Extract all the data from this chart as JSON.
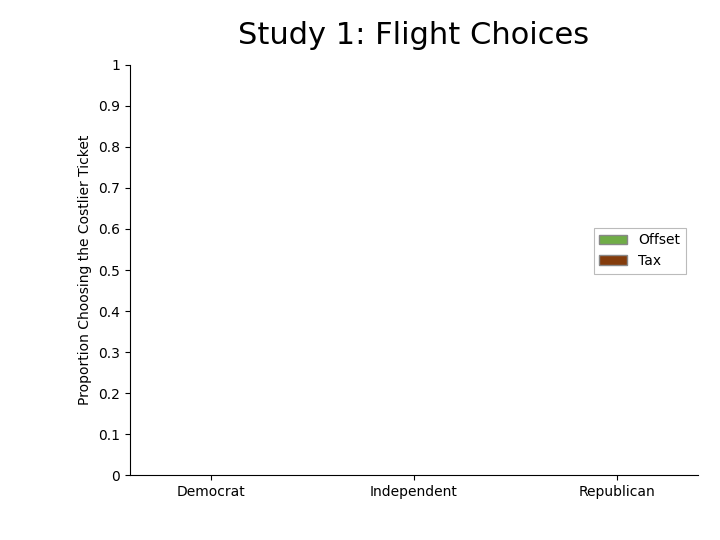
{
  "title": "Study 1: Flight Choices",
  "ylabel": "Proportion Choosing the Costlier Ticket",
  "categories": [
    "Democrat",
    "Independent",
    "Republican"
  ],
  "series": [
    {
      "label": "Offset",
      "color": "#70AD47",
      "values": [
        0,
        0,
        0
      ]
    },
    {
      "label": "Tax",
      "color": "#843C0C",
      "values": [
        0,
        0,
        0
      ]
    }
  ],
  "ylim": [
    0,
    1
  ],
  "yticks": [
    0,
    0.1,
    0.2,
    0.3,
    0.4,
    0.5,
    0.6,
    0.7,
    0.8,
    0.9,
    1
  ],
  "ytick_labels": [
    "0",
    "0.1",
    "0.2",
    "0.3",
    "0.4",
    "0.5",
    "0.6",
    "0.7",
    "0.8",
    "0.9",
    "1"
  ],
  "bar_width": 0.35,
  "title_fontsize": 22,
  "axis_label_fontsize": 10,
  "tick_fontsize": 10,
  "legend_fontsize": 10,
  "background_color": "#ffffff"
}
